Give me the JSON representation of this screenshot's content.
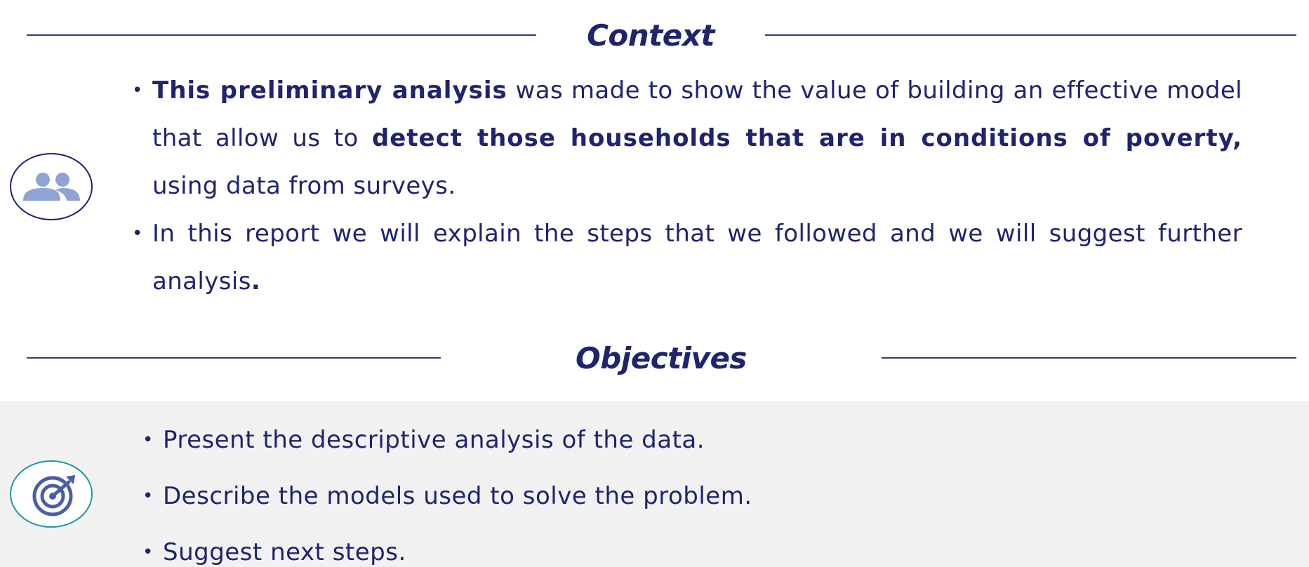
{
  "context": {
    "title": "Context",
    "icon": "people-icon",
    "bullets": [
      {
        "bold_lead": "This preliminary analysis",
        "text_mid": " was made to show the value of building an effective model that allow us to ",
        "bold_mid": "detect those households that are in conditions of poverty,",
        "text_end": " using data from surveys."
      },
      {
        "text": "In this report we will explain the steps that we followed and we will suggest further analysis",
        "bold_end": "."
      }
    ]
  },
  "objectives": {
    "title": "Objectives",
    "icon": "target-icon",
    "items": [
      "Present the descriptive analysis of the data.",
      "Describe the models used to solve the problem.",
      "Suggest next steps."
    ]
  },
  "colors": {
    "text": "#1f2370",
    "rule": "#2c3a86",
    "icon_fill": "#8fa3d4",
    "target_fill": "#4a5ea8",
    "context_circle": "#1f2370",
    "objectives_circle": "#1a9aa0",
    "band": "#f1f1f1"
  }
}
